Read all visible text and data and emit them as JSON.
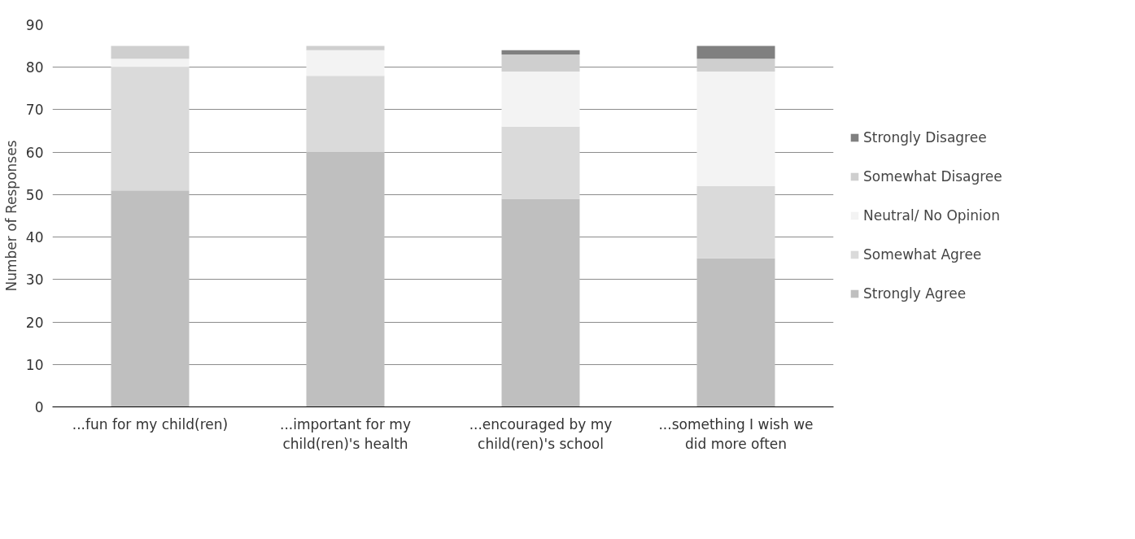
{
  "chart_data": {
    "type": "bar",
    "stacked": true,
    "ylabel": "Number of Responses",
    "categories": [
      "...fun for my child(ren)",
      "...important for my child(ren)'s health",
      "...encouraged by my child(ren)'s school",
      "...something I wish we did more often"
    ],
    "series": [
      {
        "name": "Strongly Agree",
        "color": "#bfbfbf",
        "values": [
          51,
          60,
          49,
          35
        ]
      },
      {
        "name": "Somewhat Agree",
        "color": "#dadada",
        "values": [
          29,
          18,
          17,
          17
        ]
      },
      {
        "name": "Neutral/ No Opinion",
        "color": "#f3f3f3",
        "values": [
          2,
          6,
          13,
          27
        ]
      },
      {
        "name": "Somewhat Disagree",
        "color": "#cfcfcf",
        "values": [
          3,
          1,
          4,
          3
        ]
      },
      {
        "name": "Strongly Disagree",
        "color": "#808080",
        "values": [
          0,
          0,
          1,
          3
        ]
      }
    ],
    "ylim": [
      0,
      90
    ],
    "yticks": [
      0,
      10,
      20,
      30,
      40,
      50,
      60,
      70,
      80,
      90
    ],
    "grid": "y",
    "legend": "right"
  }
}
